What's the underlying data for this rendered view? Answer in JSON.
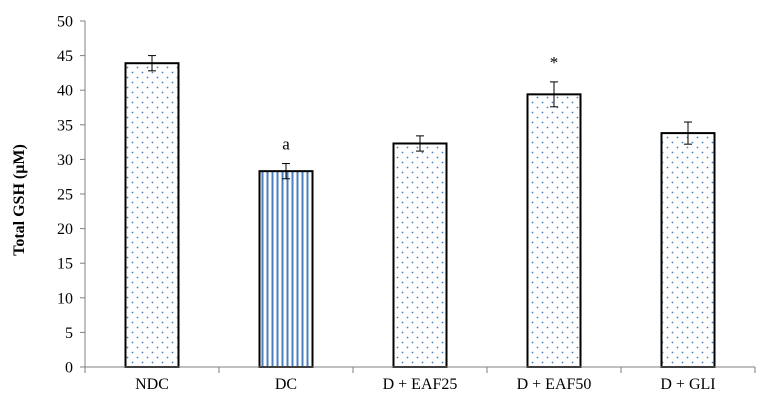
{
  "chart_data": {
    "type": "bar",
    "title": "",
    "xlabel": "",
    "ylabel": "Total GSH (µM)",
    "ylim": [
      0,
      50
    ],
    "yticks": [
      0,
      5,
      10,
      15,
      20,
      25,
      30,
      35,
      40,
      45,
      50
    ],
    "grid": false,
    "legend": "none",
    "categories": [
      "NDC",
      "DC",
      "D + EAF25",
      "D + EAF50",
      "D + GLI"
    ],
    "values": [
      43.9,
      28.3,
      32.3,
      39.4,
      33.8
    ],
    "errors": [
      1.1,
      1.1,
      1.1,
      1.8,
      1.6
    ],
    "patterns": [
      "dots",
      "vertical-stripes",
      "dots",
      "dots",
      "dots"
    ],
    "annotations": [
      "",
      "a",
      "",
      "*",
      ""
    ],
    "colors": {
      "pattern": "#4a7fc1",
      "stroke": "#000000",
      "background": "#ffffff"
    }
  }
}
